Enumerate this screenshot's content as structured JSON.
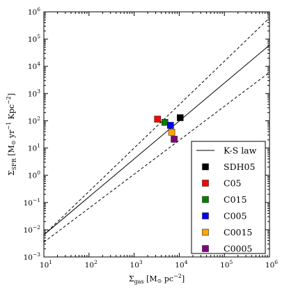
{
  "chart_data": {
    "type": "scatter",
    "title": "",
    "xlabel": {
      "base": "Σ",
      "sub": "gas",
      "units_open": " [M",
      "odot": "⊙",
      "units_mid": " pc",
      "exp": "−2",
      "units_close": "]"
    },
    "ylabel": {
      "base": "Σ",
      "sub": "SFR",
      "units_open": " [M",
      "odot": "⊙",
      "units_mid": " yr",
      "exp1": "−1",
      "units_mid2": " Kpc",
      "exp2": "−2",
      "units_close": "]"
    },
    "x_scale": "log",
    "y_scale": "log",
    "xlim": [
      10,
      1000000
    ],
    "ylim": [
      0.001,
      1000000
    ],
    "x_ticks": [
      {
        "base": "10",
        "exp": "1"
      },
      {
        "base": "10",
        "exp": "2"
      },
      {
        "base": "10",
        "exp": "3"
      },
      {
        "base": "10",
        "exp": "4"
      },
      {
        "base": "10",
        "exp": "5"
      },
      {
        "base": "10",
        "exp": "6"
      }
    ],
    "y_ticks": [
      {
        "base": "10",
        "exp": "−3"
      },
      {
        "base": "10",
        "exp": "−2"
      },
      {
        "base": "10",
        "exp": "−1"
      },
      {
        "base": "10",
        "exp": "0"
      },
      {
        "base": "10",
        "exp": "1"
      },
      {
        "base": "10",
        "exp": "2"
      },
      {
        "base": "10",
        "exp": "3"
      },
      {
        "base": "10",
        "exp": "4"
      },
      {
        "base": "10",
        "exp": "5"
      },
      {
        "base": "10",
        "exp": "6"
      }
    ],
    "grid": false,
    "legend_position": "bottom-right",
    "lines": [
      {
        "name": "K-S law",
        "style": "solid",
        "color": "#000000",
        "points": [
          [
            10,
            0.0065
          ],
          [
            1000000,
            60000
          ]
        ]
      },
      {
        "name": "",
        "style": "dashed",
        "color": "#000000",
        "points": [
          [
            10,
            0.0065
          ],
          [
            1000000,
            600000
          ]
        ]
      },
      {
        "name": "",
        "style": "dashed",
        "color": "#000000",
        "points": [
          [
            10,
            0.0035
          ],
          [
            1000000,
            6000
          ]
        ]
      }
    ],
    "series": [
      {
        "name": "SDH05",
        "color": "#000000",
        "marker": "square",
        "x": 10500,
        "y": 130
      },
      {
        "name": "C05",
        "color": "#ff0000",
        "marker": "square",
        "x": 3300,
        "y": 115
      },
      {
        "name": "C015",
        "color": "#008000",
        "marker": "square",
        "x": 4800,
        "y": 88
      },
      {
        "name": "C005",
        "color": "#0000ff",
        "marker": "square",
        "x": 6400,
        "y": 68
      },
      {
        "name": "C0015",
        "color": "#ffa500",
        "marker": "square",
        "x": 6800,
        "y": 38
      },
      {
        "name": "C0005",
        "color": "#800080",
        "marker": "square",
        "x": 7700,
        "y": 21
      }
    ]
  }
}
